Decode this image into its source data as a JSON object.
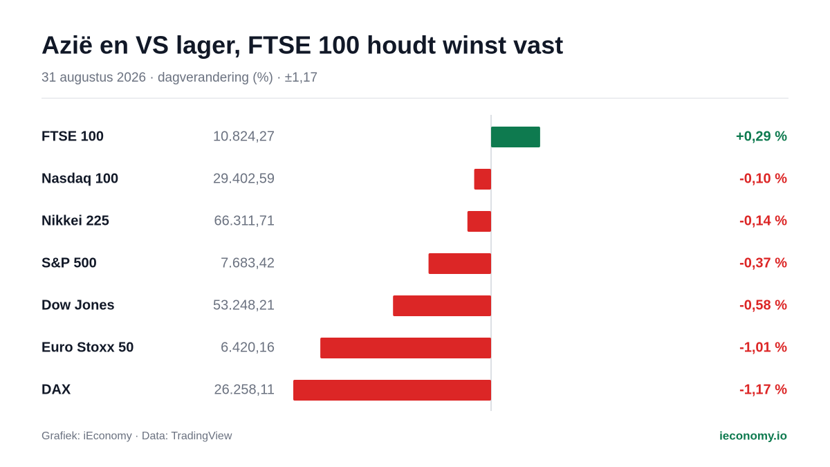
{
  "chart_data": {
    "type": "bar",
    "orientation": "horizontal",
    "title": "Azië en VS lager, FTSE 100 houdt winst vast",
    "subtitle": "31 augustus 2026 · dagverandering (%) · ±1,17",
    "categories": [
      "FTSE 100",
      "Nasdaq 100",
      "Nikkei 225",
      "S&P 500",
      "Dow Jones",
      "Euro Stoxx 50",
      "DAX"
    ],
    "index_levels": [
      "10.824,27",
      "29.402,59",
      "66.311,71",
      "7.683,42",
      "53.248,21",
      "6.420,16",
      "26.258,11"
    ],
    "values": [
      0.29,
      -0.1,
      -0.14,
      -0.37,
      -0.58,
      -1.01,
      -1.17
    ],
    "value_labels": [
      "+0,29 %",
      "-0,10 %",
      "-0,14 %",
      "-0,37 %",
      "-0,58 %",
      "-1,01 %",
      "-1,17 %"
    ],
    "xlim": [
      -1.17,
      1.17
    ],
    "colors": {
      "positive": "#0e7a4f",
      "negative": "#dc2626"
    },
    "source": "Grafiek: iEconomy · Data: TradingView",
    "brand": "ieconomy.io"
  }
}
